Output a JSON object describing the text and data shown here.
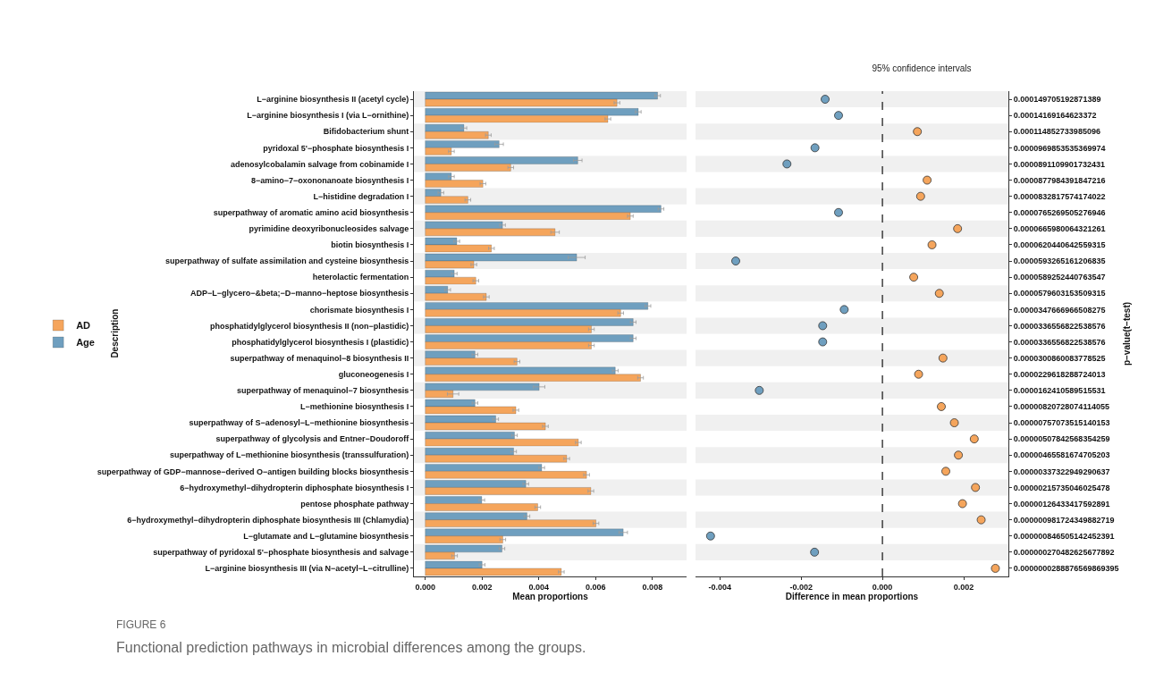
{
  "chart_data": [
    {
      "type": "bar",
      "orientation": "horizontal",
      "xlabel": "Mean proportions",
      "ylabel": "Description",
      "legend": "left",
      "categories": [
        "L−arginine biosynthesis II (acetyl cycle)",
        "L−arginine biosynthesis I (via L−ornithine)",
        "Bifidobacterium shunt",
        "pyridoxal 5'−phosphate biosynthesis I",
        "adenosylcobalamin salvage from cobinamide I",
        "8−amino−7−oxononanoate biosynthesis I",
        "L−histidine degradation I",
        "superpathway of aromatic amino acid biosynthesis",
        "pyrimidine deoxyribonucleosides salvage",
        "biotin biosynthesis I",
        "superpathway of sulfate assimilation and cysteine biosynthesis",
        "heterolactic fermentation",
        "ADP−L−glycero−&beta;−D−manno−heptose biosynthesis",
        "chorismate biosynthesis I",
        "phosphatidylglycerol biosynthesis II (non−plastidic)",
        "phosphatidylglycerol biosynthesis I (plastidic)",
        "superpathway of menaquinol−8 biosynthesis II",
        "gluconeogenesis I",
        "superpathway of menaquinol−7 biosynthesis",
        "L−methionine biosynthesis I",
        "superpathway of S−adenosyl−L−methionine biosynthesis",
        "superpathway of glycolysis and Entner−Doudoroff",
        "superpathway of L−methionine biosynthesis (transsulfuration)",
        "superpathway of GDP−mannose−derived O−antigen building blocks biosynthesis",
        "6−hydroxymethyl−dihydropterin diphosphate biosynthesis I",
        "pentose phosphate pathway",
        "6−hydroxymethyl−dihydropterin diphosphate biosynthesis III (Chlamydia)",
        "L−glutamate and L−glutamine biosynthesis",
        "superpathway of pyridoxal 5'−phosphate biosynthesis and salvage",
        "L−arginine biosynthesis III (via N−acetyl−L−citrulline)"
      ],
      "series": [
        {
          "name": "AD",
          "color": "#f5a55c",
          "values": [
            0.00675,
            0.00643,
            0.00222,
            0.00092,
            0.00301,
            0.00203,
            0.0015,
            0.00722,
            0.00457,
            0.00233,
            0.00171,
            0.00178,
            0.00215,
            0.00688,
            0.00585,
            0.00585,
            0.00323,
            0.00758,
            0.00098,
            0.00319,
            0.00423,
            0.00539,
            0.00498,
            0.00568,
            0.00583,
            0.00396,
            0.00601,
            0.00273,
            0.00103,
            0.00479
          ],
          "errors": [
            0.0001,
            0.0001,
            0.0001,
            0.0001,
            0.0001,
            0.0001,
            0.0001,
            0.0001,
            0.00015,
            0.0001,
            0.0001,
            0.0001,
            0.0001,
            0.0001,
            0.0001,
            0.0001,
            0.0001,
            0.0001,
            0.0002,
            0.0001,
            0.0001,
            0.0001,
            0.0001,
            0.0001,
            0.0001,
            0.0001,
            0.0001,
            0.0001,
            0.0001,
            0.0001
          ]
        },
        {
          "name": "Age",
          "color": "#6f9fbf",
          "values": [
            0.00818,
            0.0075,
            0.00136,
            0.0026,
            0.00537,
            0.00092,
            0.00055,
            0.0083,
            0.00272,
            0.00111,
            0.00533,
            0.00102,
            0.00079,
            0.00784,
            0.00732,
            0.00732,
            0.00175,
            0.00669,
            0.00401,
            0.00175,
            0.00248,
            0.00314,
            0.00311,
            0.0041,
            0.00354,
            0.00199,
            0.00358,
            0.00697,
            0.0027,
            0.002
          ],
          "errors": [
            0.0001,
            0.0001,
            0.0001,
            0.00015,
            0.00015,
            0.0001,
            0.0001,
            0.0001,
            0.0001,
            0.0001,
            0.0003,
            0.0001,
            0.0001,
            0.0001,
            0.0001,
            0.0001,
            0.0001,
            0.0001,
            0.0002,
            0.0001,
            0.0001,
            0.0001,
            0.0001,
            0.0001,
            0.0001,
            0.0001,
            0.0001,
            0.00015,
            0.0001,
            0.0001
          ]
        }
      ],
      "xlim": [
        -0.0004,
        0.0092
      ],
      "xticks": [
        {
          "value": 0,
          "label": "0.000"
        },
        {
          "value": 0.002,
          "label": "0.002"
        },
        {
          "value": 0.004,
          "label": "0.004"
        },
        {
          "value": 0.006,
          "label": "0.006"
        },
        {
          "value": 0.008,
          "label": "0.008"
        }
      ],
      "annotations": [
        "FIGURE 6",
        "Functional prediction pathways in microbial differences among the groups."
      ]
    },
    {
      "type": "scatter",
      "orientation": "horizontal",
      "title": "95% confidence intervals",
      "xlabel": "Difference in mean proportions",
      "ylabel": "p−value(t−test)",
      "marker": "circle",
      "categories": [
        "0.000149705192871389",
        "0.00014169164623372",
        "0.000114852733985096",
        "0.0000969853535369974",
        "0.0000891109901732431",
        "0.0000877984391847216",
        "0.0000832817574174022",
        "0.0000765269505276946",
        "0.0000665980064321261",
        "0.0000620440642559315",
        "0.0000593265161206835",
        "0.0000589252440763547",
        "0.0000579603153509315",
        "0.0000347666966508275",
        "0.0000336556822538576",
        "0.0000336556822538576",
        "0.0000300860083778525",
        "0.0000229618288724013",
        "0.0000162410589515531",
        "0.00000820728074114055",
        "0.00000757073515140153",
        "0.00000507842568354259",
        "0.00000465581674705203",
        "0.00000337322949290637",
        "0.00000215735046025478",
        "0.00000126433417592891",
        "0.000000981724349882719",
        "0.000000846505142452391",
        "0.000000270482625677892",
        "0.0000000288876569869395"
      ],
      "series": [
        {
          "values": [
            -0.00141,
            -0.00108,
            0.00086,
            -0.00166,
            -0.00235,
            0.0011,
            0.00094,
            -0.00108,
            0.00185,
            0.00122,
            -0.00361,
            0.00077,
            0.0014,
            -0.00094,
            -0.00147,
            -0.00147,
            0.00149,
            0.00089,
            -0.00303,
            0.00145,
            0.00177,
            0.00226,
            0.00187,
            0.00156,
            0.00229,
            0.00197,
            0.00243,
            -0.00423,
            -0.00167,
            0.00278
          ],
          "colors": [
            "#6f9fbf",
            "#6f9fbf",
            "#f5a55c",
            "#6f9fbf",
            "#6f9fbf",
            "#f5a55c",
            "#f5a55c",
            "#6f9fbf",
            "#f5a55c",
            "#f5a55c",
            "#6f9fbf",
            "#f5a55c",
            "#f5a55c",
            "#6f9fbf",
            "#6f9fbf",
            "#6f9fbf",
            "#f5a55c",
            "#f5a55c",
            "#6f9fbf",
            "#f5a55c",
            "#f5a55c",
            "#f5a55c",
            "#f5a55c",
            "#f5a55c",
            "#f5a55c",
            "#f5a55c",
            "#f5a55c",
            "#6f9fbf",
            "#6f9fbf",
            "#f5a55c"
          ]
        }
      ],
      "xlim": [
        -0.0046,
        0.0031
      ],
      "xticks": [
        {
          "value": -0.004,
          "label": "-0.004"
        },
        {
          "value": -0.002,
          "label": "-0.002"
        },
        {
          "value": 0,
          "label": "0.000"
        },
        {
          "value": 0.002,
          "label": "0.002"
        }
      ],
      "ref_lines": [
        {
          "axis": "x",
          "value": 0,
          "line_style": "dashed"
        }
      ]
    }
  ]
}
